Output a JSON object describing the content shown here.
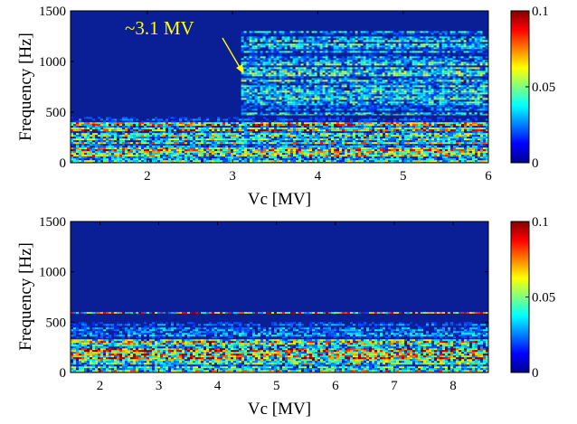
{
  "chart_data": [
    {
      "type": "heatmap",
      "xlabel": "Vc [MV]",
      "ylabel": "Frequency [Hz]",
      "xlim": [
        1.1,
        6.0
      ],
      "ylim": [
        0,
        1500
      ],
      "xticks": [
        2,
        3,
        4,
        5,
        6
      ],
      "yticks": [
        0,
        500,
        1000,
        1500
      ],
      "colorbar": {
        "min": 0,
        "max": 0.1,
        "ticks": [
          "0",
          "0.05",
          "0.1"
        ],
        "colormap": "jet"
      },
      "bands": [
        {
          "vc_from": 1.1,
          "vc_to": 6.0,
          "f_from": 0,
          "f_to": 400,
          "level": 0.045
        },
        {
          "vc_from": 1.1,
          "vc_to": 6.0,
          "f_from": 400,
          "f_to": 470,
          "level": 0.018
        },
        {
          "vc_from": 3.1,
          "vc_to": 6.0,
          "f_from": 470,
          "f_to": 1300,
          "level": 0.026
        }
      ],
      "annotation": {
        "text": "~3.1 MV",
        "x": 3.1,
        "y": 1280,
        "color": "#ffff00"
      }
    },
    {
      "type": "heatmap",
      "xlabel": "Vc [MV]",
      "ylabel": "Frequency [Hz]",
      "xlim": [
        1.5,
        8.6
      ],
      "ylim": [
        0,
        1500
      ],
      "xticks": [
        2,
        3,
        4,
        5,
        6,
        7,
        8
      ],
      "yticks": [
        0,
        500,
        1000,
        1500
      ],
      "colorbar": {
        "min": 0,
        "max": 0.1,
        "ticks": [
          "0",
          "0.05",
          "0.1"
        ],
        "colormap": "jet"
      },
      "bands": [
        {
          "vc_from": 1.5,
          "vc_to": 8.6,
          "f_from": 0,
          "f_to": 330,
          "level": 0.048
        },
        {
          "vc_from": 1.5,
          "vc_to": 8.6,
          "f_from": 330,
          "f_to": 500,
          "level": 0.016
        },
        {
          "vc_from": 1.5,
          "vc_to": 8.6,
          "f_from": 585,
          "f_to": 600,
          "level": 0.04
        }
      ]
    }
  ]
}
